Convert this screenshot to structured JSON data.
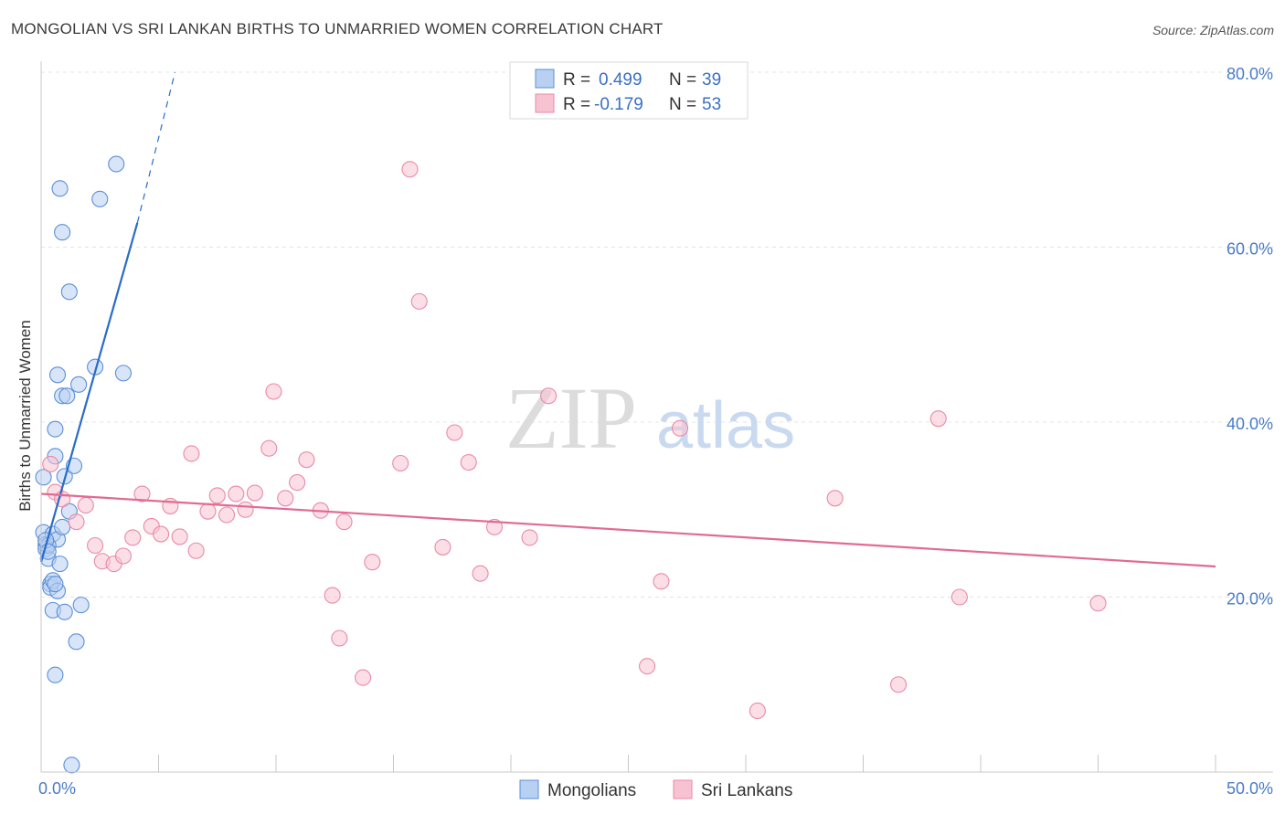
{
  "title": "MONGOLIAN VS SRI LANKAN BIRTHS TO UNMARRIED WOMEN CORRELATION CHART",
  "source": "Source: ZipAtlas.com",
  "watermark": {
    "part1": "ZIP",
    "part2": "atlas"
  },
  "legend": {
    "rows": [
      {
        "r_label": "R = ",
        "r_value": "0.499",
        "n_label": "N = ",
        "n_value": "39"
      },
      {
        "r_label": "R = ",
        "r_value": "-0.179",
        "n_label": "N = ",
        "n_value": "53"
      }
    ]
  },
  "colors": {
    "mongolian_fill": "#b8d0f2",
    "mongolian_stroke": "#5b8fd6",
    "mongolian_line": "#2a6cc9",
    "srilankan_fill": "#f7c3d2",
    "srilankan_stroke": "#e98aa8",
    "srilankan_line": "#e06b95",
    "grid": "#e4e4e4",
    "axis": "#c8c8c8",
    "tick_text": "#4a7cc7"
  },
  "chart_data": {
    "type": "scatter",
    "title": "MONGOLIAN VS SRI LANKAN BIRTHS TO UNMARRIED WOMEN CORRELATION CHART",
    "xlabel": "",
    "ylabel": "Births to Unmarried Women",
    "xlim": [
      0,
      50
    ],
    "ylim": [
      0,
      80
    ],
    "x_tick_labels": [
      "0.0%",
      "50.0%"
    ],
    "y_ticks": [
      20,
      40,
      60,
      80
    ],
    "y_tick_labels": [
      "20.0%",
      "40.0%",
      "60.0%",
      "80.0%"
    ],
    "legend_bottom": [
      "Mongolians",
      "Sri Lankans"
    ],
    "series": [
      {
        "name": "Mongolians",
        "points": [
          [
            0.1,
            33.7
          ],
          [
            0.1,
            27.4
          ],
          [
            0.2,
            26.0
          ],
          [
            0.2,
            25.5
          ],
          [
            0.3,
            24.4
          ],
          [
            0.4,
            21.5
          ],
          [
            0.4,
            21.1
          ],
          [
            0.5,
            27.2
          ],
          [
            0.5,
            21.9
          ],
          [
            0.5,
            18.5
          ],
          [
            0.6,
            39.2
          ],
          [
            0.6,
            36.1
          ],
          [
            0.6,
            11.1
          ],
          [
            0.7,
            45.4
          ],
          [
            0.7,
            26.6
          ],
          [
            0.7,
            20.7
          ],
          [
            0.8,
            66.7
          ],
          [
            0.8,
            23.8
          ],
          [
            0.9,
            61.7
          ],
          [
            0.9,
            28.0
          ],
          [
            0.9,
            43.0
          ],
          [
            1.0,
            33.8
          ],
          [
            1.0,
            18.3
          ],
          [
            1.1,
            43.0
          ],
          [
            1.2,
            54.9
          ],
          [
            1.2,
            29.8
          ],
          [
            1.3,
            0.8
          ],
          [
            1.4,
            35.0
          ],
          [
            1.5,
            14.9
          ],
          [
            1.6,
            44.3
          ],
          [
            1.7,
            19.1
          ],
          [
            2.3,
            46.3
          ],
          [
            2.5,
            65.5
          ],
          [
            3.2,
            69.5
          ],
          [
            3.5,
            45.6
          ],
          [
            0.3,
            25.9
          ],
          [
            0.2,
            26.5
          ],
          [
            0.6,
            21.5
          ],
          [
            0.3,
            25.2
          ]
        ],
        "trend_solid": [
          [
            0.0,
            24.0
          ],
          [
            4.1,
            62.8
          ]
        ],
        "trend_dashed": [
          [
            4.1,
            62.8
          ],
          [
            5.7,
            80.0
          ]
        ]
      },
      {
        "name": "Sri Lankans",
        "points": [
          [
            0.4,
            35.2
          ],
          [
            0.6,
            32.0
          ],
          [
            0.9,
            31.2
          ],
          [
            1.5,
            28.6
          ],
          [
            1.9,
            30.5
          ],
          [
            2.3,
            25.9
          ],
          [
            2.6,
            24.1
          ],
          [
            3.1,
            23.8
          ],
          [
            3.5,
            24.7
          ],
          [
            3.9,
            26.8
          ],
          [
            4.3,
            31.8
          ],
          [
            4.7,
            28.1
          ],
          [
            5.1,
            27.2
          ],
          [
            5.5,
            30.4
          ],
          [
            5.9,
            26.9
          ],
          [
            6.4,
            36.4
          ],
          [
            6.6,
            25.3
          ],
          [
            7.1,
            29.8
          ],
          [
            7.5,
            31.6
          ],
          [
            7.9,
            29.4
          ],
          [
            8.3,
            31.8
          ],
          [
            8.7,
            30.0
          ],
          [
            9.1,
            31.9
          ],
          [
            9.7,
            37.0
          ],
          [
            9.9,
            43.5
          ],
          [
            10.4,
            31.3
          ],
          [
            10.9,
            33.1
          ],
          [
            11.3,
            35.7
          ],
          [
            11.9,
            29.9
          ],
          [
            12.4,
            20.2
          ],
          [
            12.7,
            15.3
          ],
          [
            12.9,
            28.6
          ],
          [
            13.7,
            10.8
          ],
          [
            14.1,
            24.0
          ],
          [
            15.3,
            35.3
          ],
          [
            15.7,
            68.9
          ],
          [
            16.1,
            53.8
          ],
          [
            17.1,
            25.7
          ],
          [
            17.6,
            38.8
          ],
          [
            18.2,
            35.4
          ],
          [
            18.7,
            22.7
          ],
          [
            19.3,
            28.0
          ],
          [
            20.8,
            26.8
          ],
          [
            21.6,
            43.0
          ],
          [
            25.8,
            12.1
          ],
          [
            26.4,
            21.8
          ],
          [
            27.2,
            39.3
          ],
          [
            30.5,
            7.0
          ],
          [
            33.8,
            31.3
          ],
          [
            36.5,
            10.0
          ],
          [
            38.2,
            40.4
          ],
          [
            39.1,
            20.0
          ],
          [
            45.0,
            19.3
          ]
        ],
        "trend_solid": [
          [
            0.0,
            31.8
          ],
          [
            50.0,
            23.5
          ]
        ]
      }
    ]
  }
}
